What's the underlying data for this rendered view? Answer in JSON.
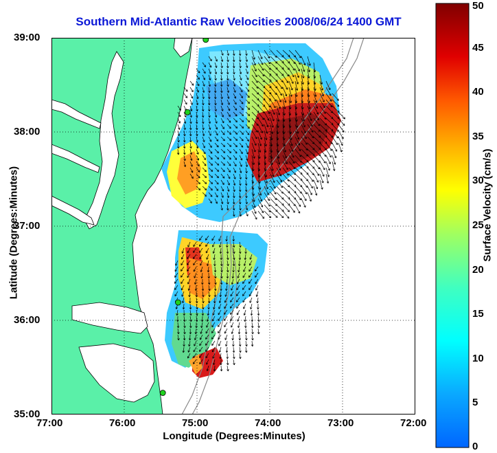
{
  "title": "Southern Mid-Atlantic Raw Velocities 2008/06/24 1400 GMT",
  "axes": {
    "xlabel": "Longitude (Degrees:Minutes)",
    "ylabel": "Latitude (Degrees:Minutes)",
    "x_ticks": [
      "77:00",
      "76:00",
      "75:00",
      "74:00",
      "73:00",
      "72:00"
    ],
    "y_ticks": [
      "39:00",
      "38:00",
      "37:00",
      "36:00",
      "35:00"
    ],
    "xlim": [
      -77,
      -72
    ],
    "ylim": [
      35,
      39
    ],
    "grid": "dotted"
  },
  "colorbar": {
    "label": "Surface Velocity (cm/s)",
    "ticks": [
      "50",
      "45",
      "40",
      "35",
      "30",
      "25",
      "20",
      "15",
      "10",
      "5",
      "0"
    ],
    "range": [
      0,
      50
    ],
    "colormap": "jet"
  },
  "colors": {
    "land": "#5af0a8",
    "ocean": "#ffffff",
    "title": "#0a17d6",
    "station": "#1fd11f"
  },
  "stations": [
    {
      "lon": -74.88,
      "lat": 38.98
    },
    {
      "lon": -75.13,
      "lat": 38.21
    },
    {
      "lon": -75.26,
      "lat": 36.19
    },
    {
      "lon": -75.47,
      "lat": 35.23
    }
  ]
}
